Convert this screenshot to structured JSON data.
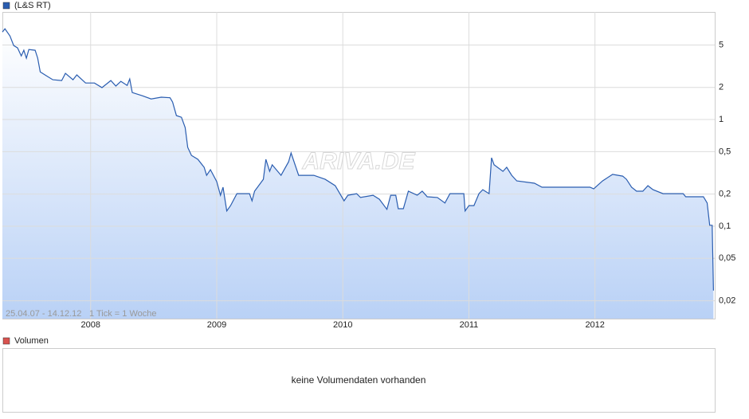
{
  "chart_data": {
    "type": "line",
    "legend": "(L&S RT)",
    "date_range": "25.04.07 - 14.12.12",
    "tick_info": "1 Tick = 1 Woche",
    "watermark": "ARIVA.DE",
    "log_scale": true,
    "grid": true,
    "xlim": [
      2007.3,
      2012.95
    ],
    "xticks": [
      2008,
      2009,
      2010,
      2011,
      2012
    ],
    "ylim": [
      0.0136,
      10.2
    ],
    "yticks": [
      {
        "value": 0.02,
        "label": "0,02"
      },
      {
        "value": 0.05,
        "label": "0,05"
      },
      {
        "value": 0.1,
        "label": "0,1"
      },
      {
        "value": 0.2,
        "label": "0,2"
      },
      {
        "value": 0.5,
        "label": "0,5"
      },
      1,
      2,
      5
    ],
    "series": [
      {
        "name": "(L&S RT)",
        "color": "#2a5db0",
        "x": [
          2007.3,
          2007.32,
          2007.36,
          2007.39,
          2007.42,
          2007.45,
          2007.47,
          2007.49,
          2007.51,
          2007.56,
          2007.58,
          2007.6,
          2007.65,
          2007.7,
          2007.77,
          2007.8,
          2007.86,
          2007.89,
          2007.96,
          2008.03,
          2008.09,
          2008.16,
          2008.2,
          2008.24,
          2008.29,
          2008.31,
          2008.33,
          2008.41,
          2008.48,
          2008.56,
          2008.63,
          2008.65,
          2008.68,
          2008.72,
          2008.75,
          2008.77,
          2008.8,
          2008.85,
          2008.9,
          2008.92,
          2008.95,
          2009.0,
          2009.03,
          2009.05,
          2009.08,
          2009.11,
          2009.16,
          2009.26,
          2009.28,
          2009.3,
          2009.37,
          2009.39,
          2009.42,
          2009.44,
          2009.51,
          2009.57,
          2009.59,
          2009.65,
          2009.77,
          2009.86,
          2009.94,
          2010.01,
          2010.04,
          2010.11,
          2010.14,
          2010.24,
          2010.29,
          2010.35,
          2010.38,
          2010.42,
          2010.44,
          2010.48,
          2010.52,
          2010.59,
          2010.63,
          2010.67,
          2010.75,
          2010.81,
          2010.85,
          2010.96,
          2010.97,
          2011.0,
          2011.04,
          2011.08,
          2011.11,
          2011.16,
          2011.18,
          2011.2,
          2011.27,
          2011.3,
          2011.34,
          2011.38,
          2011.52,
          2011.58,
          2011.96,
          2011.99,
          2012.06,
          2012.14,
          2012.22,
          2012.25,
          2012.29,
          2012.33,
          2012.38,
          2012.42,
          2012.46,
          2012.54,
          2012.7,
          2012.72,
          2012.86,
          2012.89,
          2012.91,
          2012.93,
          2012.94
        ],
        "values": [
          6.6,
          7.1,
          6.08,
          4.94,
          4.7,
          3.95,
          4.46,
          3.76,
          4.54,
          4.46,
          3.76,
          2.8,
          2.57,
          2.36,
          2.32,
          2.71,
          2.36,
          2.62,
          2.2,
          2.2,
          1.99,
          2.32,
          2.06,
          2.28,
          2.09,
          2.4,
          1.79,
          1.67,
          1.56,
          1.62,
          1.6,
          1.46,
          1.09,
          1.05,
          0.84,
          0.548,
          0.461,
          0.424,
          0.357,
          0.3,
          0.339,
          0.262,
          0.195,
          0.232,
          0.139,
          0.156,
          0.202,
          0.202,
          0.173,
          0.213,
          0.275,
          0.424,
          0.327,
          0.376,
          0.3,
          0.402,
          0.486,
          0.3,
          0.3,
          0.275,
          0.24,
          0.173,
          0.195,
          0.202,
          0.186,
          0.195,
          0.179,
          0.144,
          0.195,
          0.195,
          0.146,
          0.146,
          0.213,
          0.195,
          0.213,
          0.189,
          0.186,
          0.165,
          0.202,
          0.202,
          0.139,
          0.156,
          0.156,
          0.202,
          0.22,
          0.202,
          0.438,
          0.376,
          0.327,
          0.357,
          0.3,
          0.266,
          0.253,
          0.232,
          0.232,
          0.224,
          0.266,
          0.306,
          0.295,
          0.275,
          0.232,
          0.213,
          0.213,
          0.24,
          0.22,
          0.202,
          0.202,
          0.189,
          0.189,
          0.165,
          0.102,
          0.102,
          0.0249
        ]
      }
    ],
    "volume_panel": {
      "legend": "Volumen",
      "color": "#d9534f",
      "message": "keine Volumendaten vorhanden"
    }
  }
}
